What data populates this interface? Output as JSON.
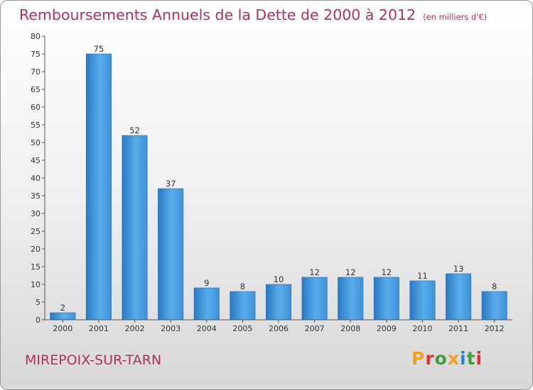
{
  "header": {
    "title": "Remboursements Annuels de la Dette de 2000 à 2012",
    "unit": "(en milliers d'€)"
  },
  "footer": {
    "place": "MIREPOIX-SUR-TARN",
    "logo": "Proxiti",
    "logo_colors": [
      "#f0a020",
      "#e03030",
      "#40a040",
      "#f0a020",
      "#3080d0",
      "#40a040",
      "#e03030"
    ]
  },
  "chart_data": {
    "type": "bar",
    "title": "Remboursements Annuels de la Dette de 2000 à 2012",
    "categories": [
      "2000",
      "2001",
      "2002",
      "2003",
      "2004",
      "2005",
      "2006",
      "2007",
      "2008",
      "2009",
      "2010",
      "2011",
      "2012"
    ],
    "values": [
      2,
      75,
      52,
      37,
      9,
      8,
      10,
      12,
      12,
      12,
      11,
      13,
      8
    ],
    "ylim": [
      0,
      80
    ],
    "yticks": [
      0,
      5,
      10,
      15,
      20,
      25,
      30,
      35,
      40,
      45,
      50,
      55,
      60,
      65,
      70,
      75,
      80
    ],
    "grid": false,
    "legend": "none",
    "bar_color": "#3d8fd9"
  }
}
